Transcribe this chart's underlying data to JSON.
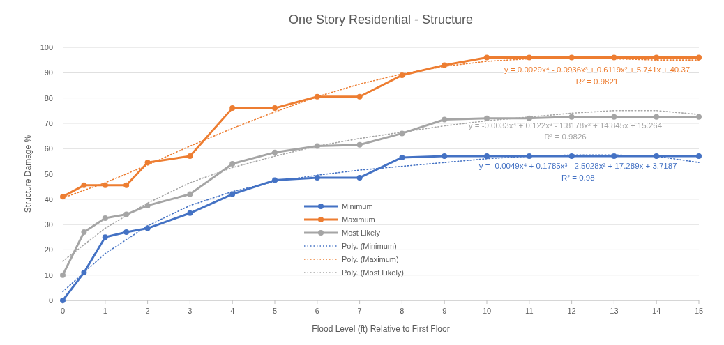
{
  "chart_data": {
    "type": "line",
    "title": "One Story Residential - Structure",
    "xlabel": "Flood Level (ft) Relative to First Floor",
    "ylabel": "Structure Damage %",
    "x": [
      0,
      0.5,
      1,
      1.5,
      2,
      3,
      4,
      5,
      6,
      7,
      8,
      9,
      10,
      11,
      12,
      13,
      14,
      15
    ],
    "xlim": [
      0,
      15
    ],
    "xticks": [
      0,
      1,
      2,
      3,
      4,
      5,
      6,
      7,
      8,
      9,
      10,
      11,
      12,
      13,
      14,
      15
    ],
    "ylim": [
      0,
      100
    ],
    "yticks": [
      0,
      10,
      20,
      30,
      40,
      50,
      60,
      70,
      80,
      90,
      100
    ],
    "grid": "y",
    "legend": "bottom",
    "marker": "circle",
    "line_style": "solid",
    "series": [
      {
        "name": "Minimum",
        "color": "#4472c4",
        "values": [
          0,
          11,
          25,
          27,
          28.5,
          34.5,
          42,
          47.5,
          48.5,
          48.5,
          56.5,
          57,
          57,
          57,
          57,
          57,
          57,
          57
        ]
      },
      {
        "name": "Maximum",
        "color": "#ed7d31",
        "values": [
          41,
          45.5,
          45.5,
          45.5,
          54.5,
          57,
          76,
          76,
          80.5,
          80.5,
          89,
          93,
          96,
          96,
          96,
          96,
          96,
          96
        ]
      },
      {
        "name": "Most Likely",
        "color": "#a5a5a5",
        "values": [
          10,
          27,
          32.5,
          34,
          37.5,
          42,
          54,
          58.5,
          61,
          61.5,
          66,
          71.5,
          72,
          72,
          72.5,
          72.5,
          72.5,
          72.5
        ]
      },
      {
        "name": "Poly. (Minimum)",
        "color": "#4472c4",
        "marker": "none",
        "line_style": "dotted",
        "x": [
          0,
          1,
          2,
          3,
          4,
          5,
          6,
          7,
          8,
          9,
          10,
          11,
          12,
          13,
          14,
          15
        ],
        "values": [
          3.5,
          18.5,
          29.5,
          37.5,
          43,
          47,
          49.5,
          51.5,
          53,
          54.5,
          56,
          57,
          57.5,
          57.5,
          57,
          54.5
        ]
      },
      {
        "name": "Poly. (Maximum)",
        "color": "#ed7d31",
        "marker": "none",
        "line_style": "dotted",
        "x": [
          0,
          1,
          2,
          3,
          4,
          5,
          6,
          7,
          8,
          9,
          10,
          11,
          12,
          13,
          14,
          15
        ],
        "values": [
          40.5,
          46.5,
          53.5,
          61,
          68,
          74.5,
          80.5,
          85.5,
          89.5,
          92.5,
          94.5,
          95.5,
          96,
          95.5,
          95,
          95
        ]
      },
      {
        "name": "Poly. (Most Likely)",
        "color": "#a5a5a5",
        "marker": "none",
        "line_style": "dotted",
        "x": [
          0,
          1,
          2,
          3,
          4,
          5,
          6,
          7,
          8,
          9,
          10,
          11,
          12,
          13,
          14,
          15
        ],
        "values": [
          15.5,
          28.5,
          38.5,
          46.5,
          52.5,
          57,
          61,
          64,
          66.5,
          69,
          71,
          72.5,
          74,
          75,
          75,
          73.5
        ]
      }
    ],
    "annotations": [
      "y = -0.0049x⁴ + 0.1785x³ - 2.5028x² + 17.289x + 3.7187",
      "R² = 0.98",
      "y = 0.0029x⁴ - 0.0936x³ + 0.6119x² + 5.741x + 40.37",
      "R² = 0.9821",
      "y = -0.0033x⁴ + 0.122x³ - 1.8178x² + 14.845x + 15.264",
      "R² = 0.9826"
    ]
  }
}
